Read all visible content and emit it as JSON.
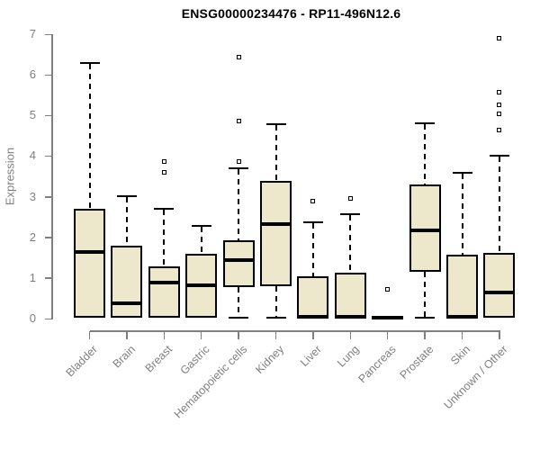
{
  "chart_data": {
    "type": "boxplot",
    "title": "ENSG00000234476 - RP11-496N12.6",
    "ylabel": "Expression",
    "xlabel": "",
    "ylim": [
      0,
      7
    ],
    "yticks": [
      0,
      1,
      2,
      3,
      4,
      5,
      6,
      7
    ],
    "grid": false,
    "legend_position": "none",
    "categories": [
      "Bladder",
      "Brain",
      "Breast",
      "Gastric",
      "Hematopoietic cells",
      "Kidney",
      "Liver",
      "Lung",
      "Pancreas",
      "Prostate",
      "Skin",
      "Unknown / Other"
    ],
    "series": [
      {
        "category": "Bladder",
        "whisker_low": 0.02,
        "q1": 0.02,
        "median": 1.64,
        "q3": 2.7,
        "whisker_high": 6.3,
        "outliers": []
      },
      {
        "category": "Brain",
        "whisker_low": 0.02,
        "q1": 0.02,
        "median": 0.38,
        "q3": 1.8,
        "whisker_high": 3.02,
        "outliers": []
      },
      {
        "category": "Breast",
        "whisker_low": 0.02,
        "q1": 0.02,
        "median": 0.89,
        "q3": 1.29,
        "whisker_high": 2.7,
        "outliers": [
          3.6,
          3.87
        ]
      },
      {
        "category": "Gastric",
        "whisker_low": 0.02,
        "q1": 0.02,
        "median": 0.82,
        "q3": 1.6,
        "whisker_high": 2.28,
        "outliers": []
      },
      {
        "category": "Hematopoietic cells",
        "whisker_low": 0.02,
        "q1": 0.78,
        "median": 1.44,
        "q3": 1.93,
        "whisker_high": 3.7,
        "outliers": [
          3.87,
          4.87,
          6.44
        ]
      },
      {
        "category": "Kidney",
        "whisker_low": 0.02,
        "q1": 0.8,
        "median": 2.33,
        "q3": 3.38,
        "whisker_high": 4.78,
        "outliers": []
      },
      {
        "category": "Liver",
        "whisker_low": 0.02,
        "q1": 0.02,
        "median": 0.05,
        "q3": 1.04,
        "whisker_high": 2.38,
        "outliers": [
          2.9
        ]
      },
      {
        "category": "Lung",
        "whisker_low": 0.02,
        "q1": 0.02,
        "median": 0.05,
        "q3": 1.13,
        "whisker_high": 2.58,
        "outliers": [
          2.95
        ]
      },
      {
        "category": "Pancreas",
        "whisker_low": 0.01,
        "q1": 0.01,
        "median": 0.03,
        "q3": 0.06,
        "whisker_high": 0.06,
        "outliers": [
          0.73
        ]
      },
      {
        "category": "Prostate",
        "whisker_low": 0.02,
        "q1": 1.16,
        "median": 2.16,
        "q3": 3.29,
        "whisker_high": 4.8,
        "outliers": []
      },
      {
        "category": "Skin",
        "whisker_low": 0.02,
        "q1": 0.02,
        "median": 0.05,
        "q3": 1.58,
        "whisker_high": 3.58,
        "outliers": []
      },
      {
        "category": "Unknown / Other",
        "whisker_low": 0.02,
        "q1": 0.02,
        "median": 0.65,
        "q3": 1.62,
        "whisker_high": 4.0,
        "outliers": [
          4.64,
          5.05,
          5.27,
          5.58,
          6.9
        ]
      }
    ],
    "colors": {
      "box_fill": "#ede7cb",
      "box_border": "#000000",
      "median": "#000000",
      "whisker": "#000000",
      "outlier": "#000000",
      "axis": "#7f7f7f",
      "title": "#000000"
    }
  }
}
